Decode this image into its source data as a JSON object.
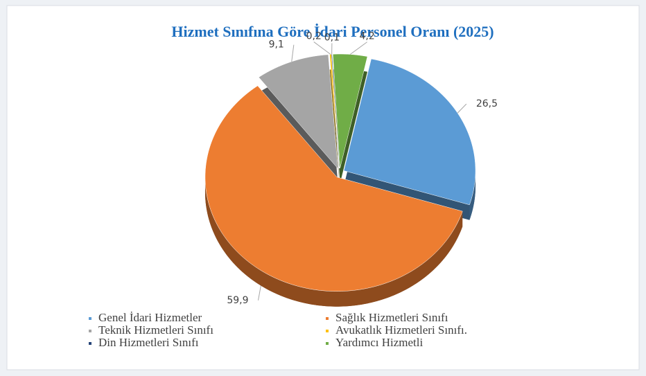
{
  "chart_data": {
    "type": "pie",
    "title": "Hizmet Sınıfına Göre İdari Personel Oranı (2025)",
    "categories": [
      "Genel İdari Hizmetler",
      "Sağlık Hizmetleri Sınıfı",
      "Teknik Hizmetleri Sınıfı",
      "Avukatlık Hizmetleri Sınıfı.",
      "Din Hizmetleri Sınıfı",
      "Yardımcı Hizmetli"
    ],
    "values": [
      26.5,
      59.9,
      9.1,
      0.2,
      0.1,
      4.2
    ],
    "value_labels": [
      "26,5",
      "59,9",
      "9,1",
      "0,2",
      "0,1",
      "4,2"
    ],
    "colors": [
      "#5b9bd5",
      "#ed7d31",
      "#a5a5a5",
      "#ffc000",
      "#264478",
      "#70ad47"
    ],
    "legend": "bottom"
  }
}
